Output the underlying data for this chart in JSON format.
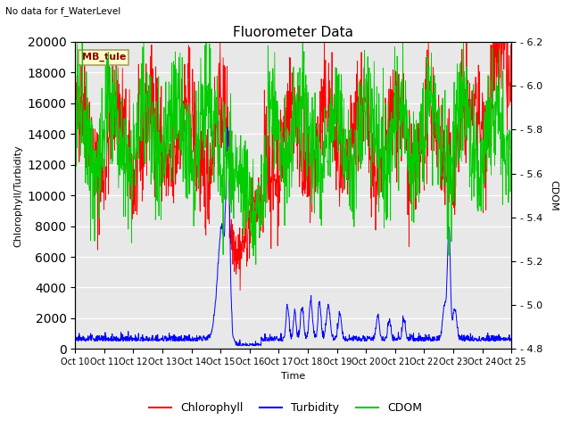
{
  "title": "Fluorometer Data",
  "subtitle": "No data for f_WaterLevel",
  "station_label": "MB_tule",
  "xlabel": "Time",
  "ylabel_left": "Chlorophyll/Turbidity",
  "ylabel_right": "CDOM",
  "x_tick_labels": [
    "Oct 10",
    "Oct 11",
    "Oct 12",
    "Oct 13",
    "Oct 14",
    "Oct 15",
    "Oct 16",
    "Oct 17",
    "Oct 18",
    "Oct 19",
    "Oct 20",
    "Oct 21",
    "Oct 22",
    "Oct 23",
    "Oct 24",
    "Oct 25"
  ],
  "ylim_left": [
    0,
    20000
  ],
  "ylim_right": [
    4.8,
    6.2
  ],
  "yticks_left": [
    0,
    2000,
    4000,
    6000,
    8000,
    10000,
    12000,
    14000,
    16000,
    18000,
    20000
  ],
  "yticks_right": [
    4.8,
    5.0,
    5.2,
    5.4,
    5.6,
    5.8,
    6.0,
    6.2
  ],
  "color_chlorophyll": "#ff0000",
  "color_turbidity": "#0000ff",
  "color_cdom": "#00cc00",
  "background_color": "#e8e8e8",
  "legend_labels": [
    "Chlorophyll",
    "Turbidity",
    "CDOM"
  ],
  "figwidth": 6.4,
  "figheight": 4.8,
  "dpi": 100
}
